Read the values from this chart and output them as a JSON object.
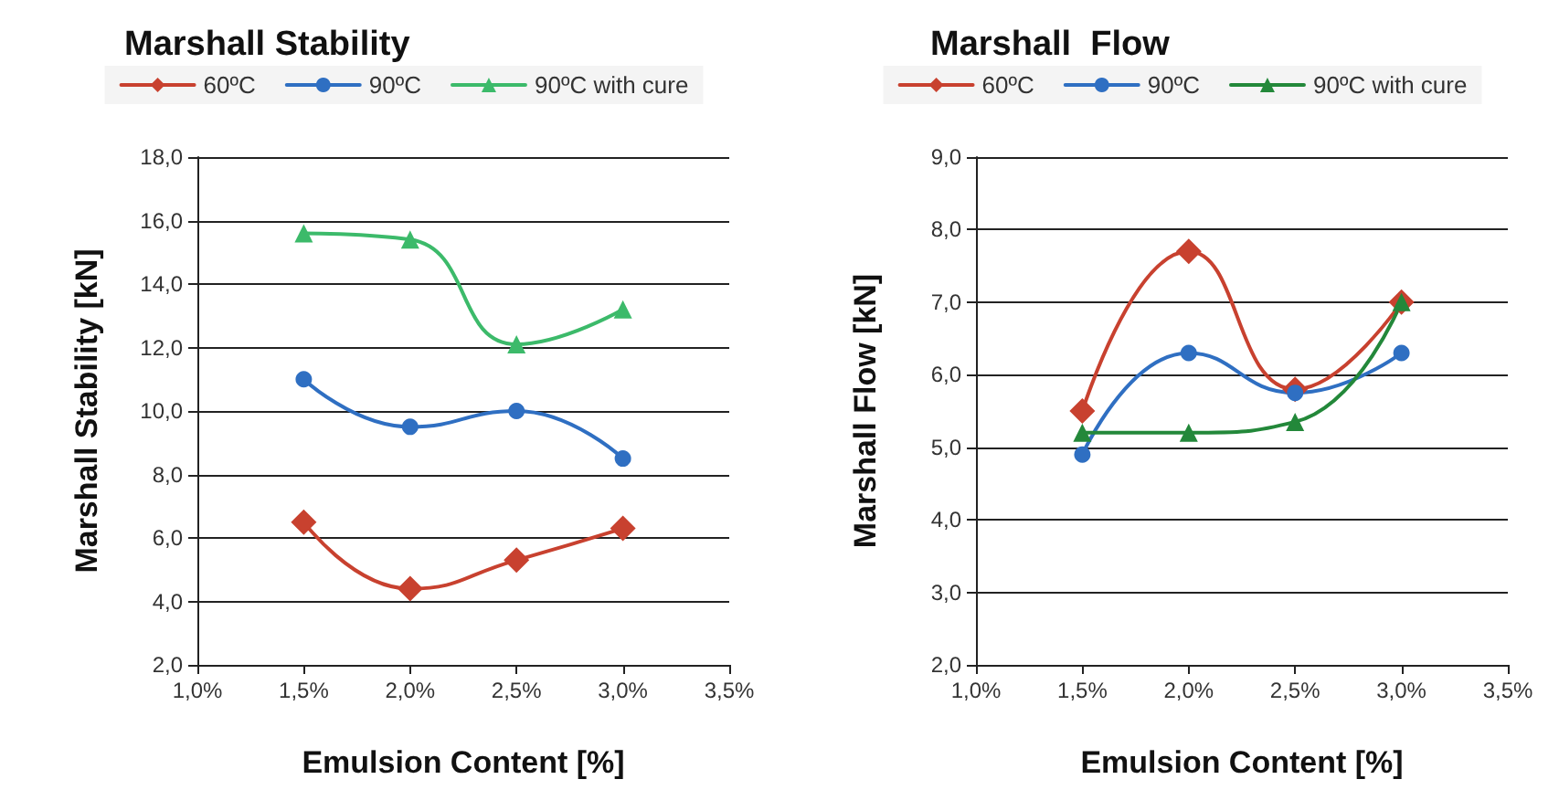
{
  "chart_data": [
    {
      "type": "line",
      "title": "Marshall Stability",
      "xlabel": "Emulsion Content [%]",
      "ylabel": "Marshall Stability [kN]",
      "x": [
        1.5,
        2.0,
        2.5,
        3.0
      ],
      "series": [
        {
          "name": "60ºC",
          "color": "#c8412f",
          "marker": "diamond",
          "values": [
            6.5,
            4.4,
            5.3,
            6.3
          ]
        },
        {
          "name": "90ºC",
          "color": "#2f6fc2",
          "marker": "circle",
          "values": [
            11.0,
            9.5,
            10.0,
            8.5
          ]
        },
        {
          "name": "90ºC with cure",
          "color": "#3cba6a",
          "marker": "triangle",
          "values": [
            15.6,
            15.4,
            12.1,
            13.2
          ]
        }
      ],
      "xlim": [
        1.0,
        3.5
      ],
      "xticks": [
        {
          "value": 1.0,
          "label": "1,0%"
        },
        {
          "value": 1.5,
          "label": "1,5%"
        },
        {
          "value": 2.0,
          "label": "2,0%"
        },
        {
          "value": 2.5,
          "label": "2,5%"
        },
        {
          "value": 3.0,
          "label": "3,0%"
        },
        {
          "value": 3.5,
          "label": "3,5%"
        }
      ],
      "ylim": [
        2,
        18
      ],
      "yticks": [
        {
          "value": 2,
          "label": "2,0"
        },
        {
          "value": 4,
          "label": "4,0"
        },
        {
          "value": 6,
          "label": "6,0"
        },
        {
          "value": 8,
          "label": "8,0"
        },
        {
          "value": 10,
          "label": "10,0"
        },
        {
          "value": 12,
          "label": "12,0"
        },
        {
          "value": 14,
          "label": "14,0"
        },
        {
          "value": 16,
          "label": "16,0"
        },
        {
          "value": 18,
          "label": "18,0"
        }
      ],
      "grid": "y",
      "legend": "top"
    },
    {
      "type": "line",
      "title": "Marshall  Flow",
      "xlabel": "Emulsion Content [%]",
      "ylabel": "Marshall Flow [kN]",
      "x": [
        1.5,
        2.0,
        2.5,
        3.0
      ],
      "series": [
        {
          "name": "60ºC",
          "color": "#c8412f",
          "marker": "diamond",
          "values": [
            5.5,
            7.7,
            5.8,
            7.0
          ]
        },
        {
          "name": "90ºC",
          "color": "#2f6fc2",
          "marker": "circle",
          "values": [
            4.9,
            6.3,
            5.75,
            6.3
          ]
        },
        {
          "name": "90ºC with cure",
          "color": "#23883a",
          "marker": "triangle",
          "values": [
            5.2,
            5.2,
            5.35,
            7.0
          ]
        }
      ],
      "xlim": [
        1.0,
        3.5
      ],
      "xticks": [
        {
          "value": 1.0,
          "label": "1,0%"
        },
        {
          "value": 1.5,
          "label": "1,5%"
        },
        {
          "value": 2.0,
          "label": "2,0%"
        },
        {
          "value": 2.5,
          "label": "2,5%"
        },
        {
          "value": 3.0,
          "label": "3,0%"
        },
        {
          "value": 3.5,
          "label": "3,5%"
        }
      ],
      "ylim": [
        2,
        9
      ],
      "yticks": [
        {
          "value": 2,
          "label": "2,0"
        },
        {
          "value": 3,
          "label": "3,0"
        },
        {
          "value": 4,
          "label": "4,0"
        },
        {
          "value": 5,
          "label": "5,0"
        },
        {
          "value": 6,
          "label": "6,0"
        },
        {
          "value": 7,
          "label": "7,0"
        },
        {
          "value": 8,
          "label": "8,0"
        },
        {
          "value": 9,
          "label": "9,0"
        }
      ],
      "grid": "y",
      "legend": "top"
    }
  ]
}
